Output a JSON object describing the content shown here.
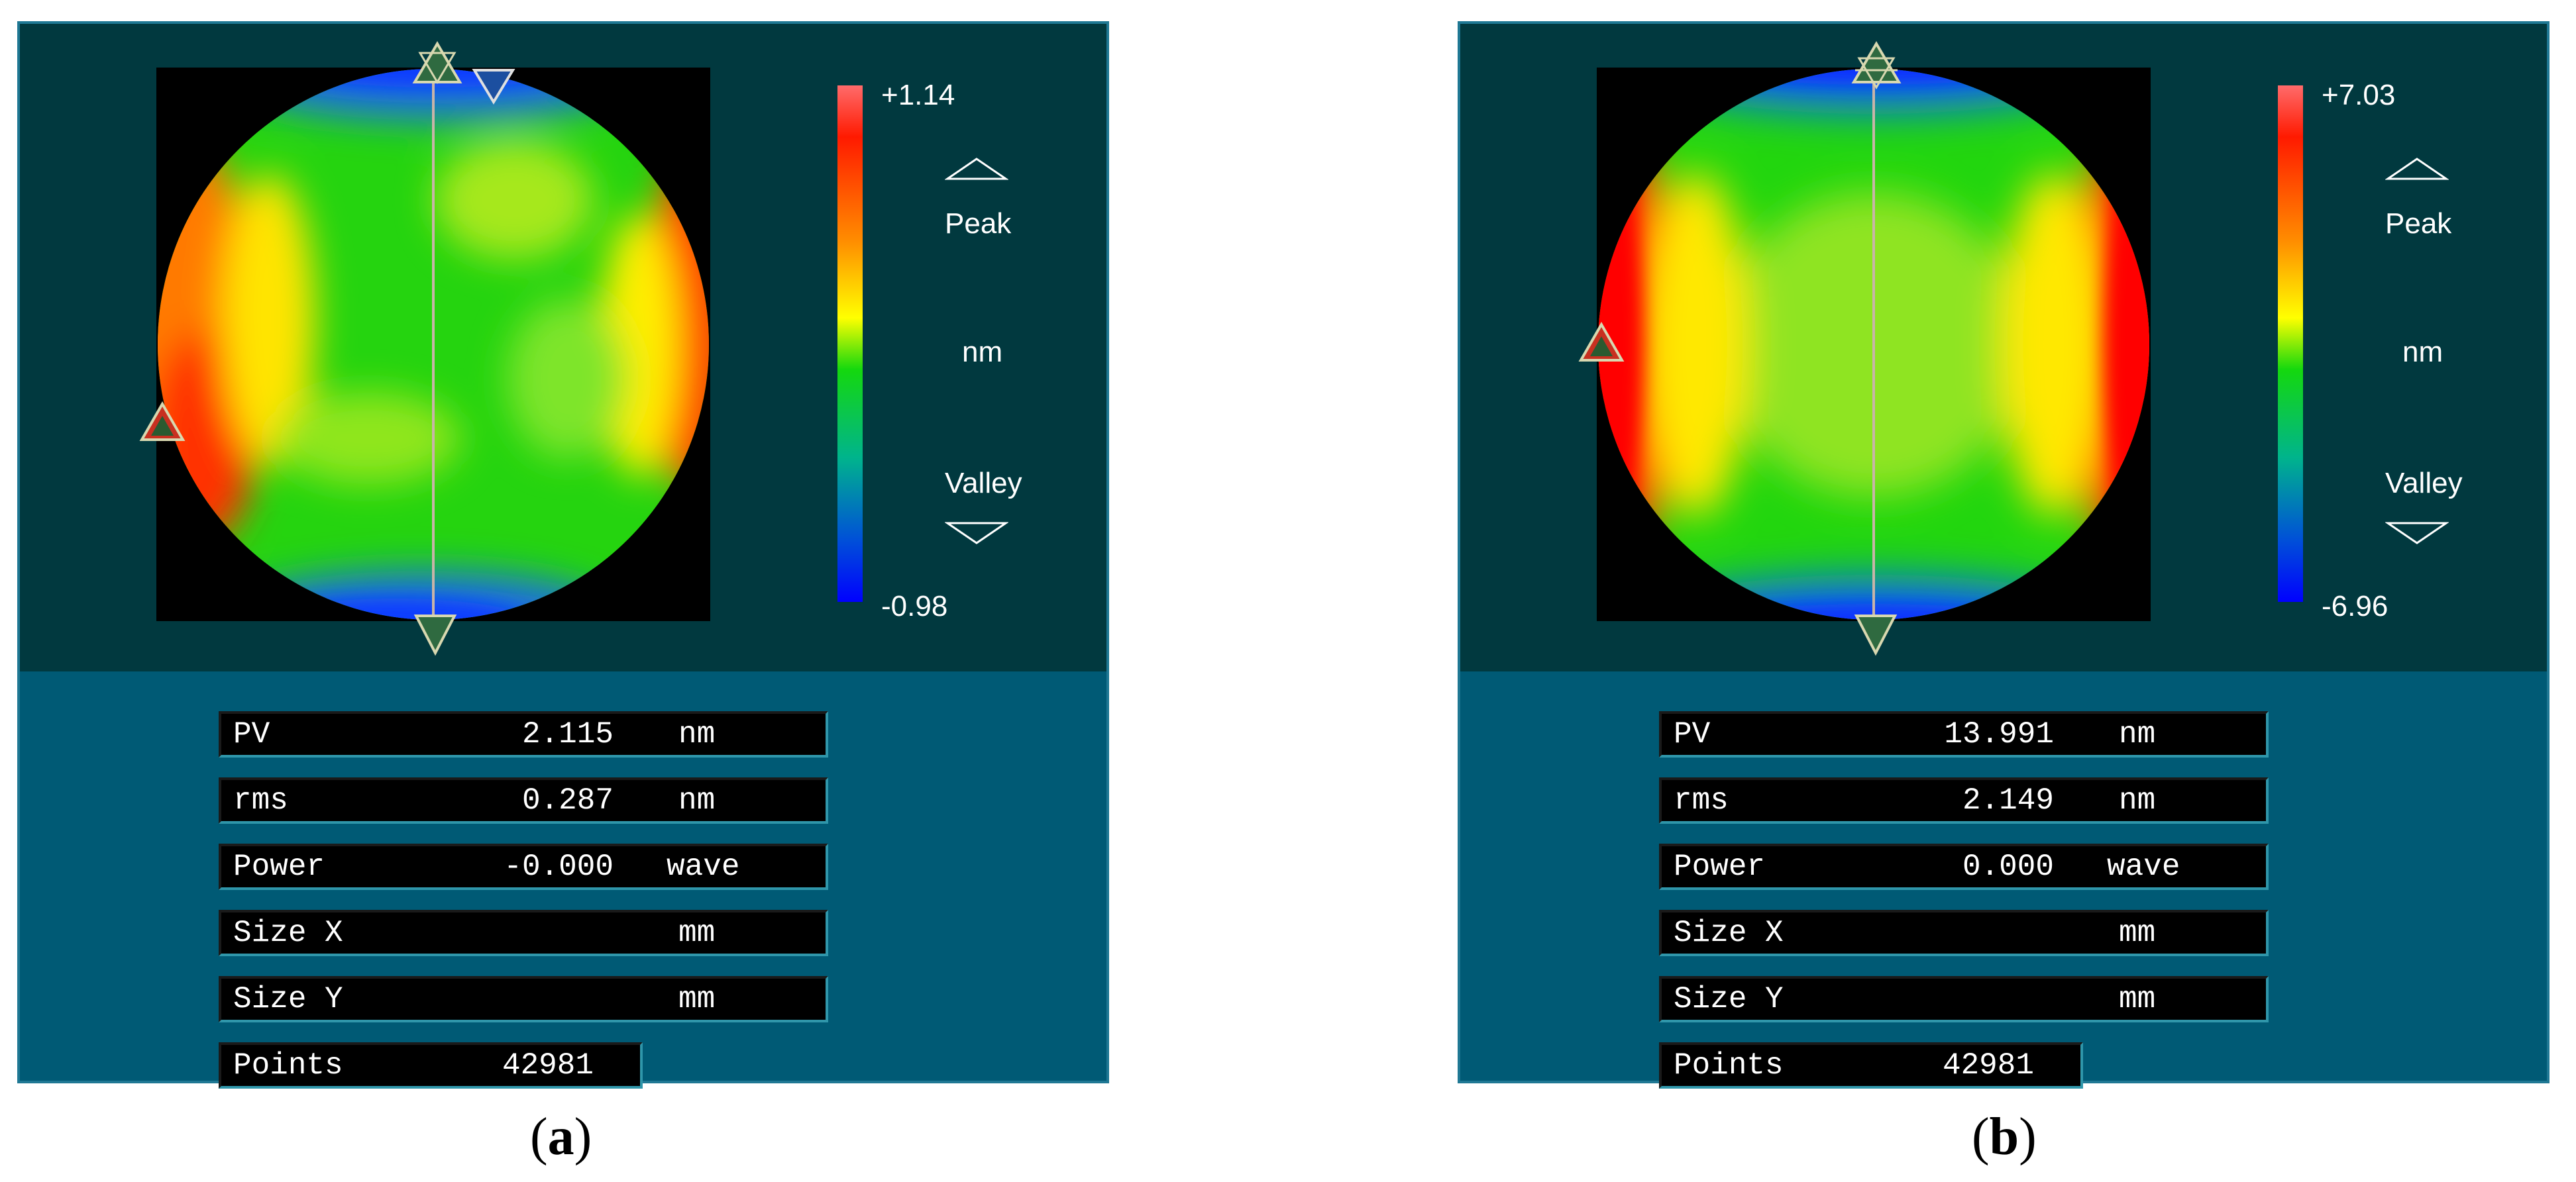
{
  "panels": [
    {
      "id": "a",
      "scale": {
        "max": "+1.14",
        "min": "-0.98",
        "unit": "nm",
        "peak_label": "Peak",
        "valley_label": "Valley"
      },
      "stats": [
        {
          "label": "PV",
          "value": "2.115",
          "unit": "nm"
        },
        {
          "label": "rms",
          "value": "0.287",
          "unit": "nm"
        },
        {
          "label": "Power",
          "value": "-0.000",
          "unit": "wave"
        },
        {
          "label": "Size X",
          "value": "",
          "unit": "mm"
        },
        {
          "label": "Size Y",
          "value": "",
          "unit": "mm"
        },
        {
          "label": "Points",
          "value": "42981",
          "unit": ""
        }
      ],
      "caption_letter": "a"
    },
    {
      "id": "b",
      "scale": {
        "max": "+7.03",
        "min": "-6.96",
        "unit": "nm",
        "peak_label": "Peak",
        "valley_label": "Valley"
      },
      "stats": [
        {
          "label": "PV",
          "value": "13.991",
          "unit": "nm"
        },
        {
          "label": "rms",
          "value": "2.149",
          "unit": "nm"
        },
        {
          "label": "Power",
          "value": "0.000",
          "unit": "wave"
        },
        {
          "label": "Size X",
          "value": "",
          "unit": "mm"
        },
        {
          "label": "Size Y",
          "value": "",
          "unit": "mm"
        },
        {
          "label": "Points",
          "value": "42981",
          "unit": ""
        }
      ],
      "caption_letter": "b"
    }
  ],
  "colors": {
    "panel_upper": "#01393f",
    "panel_lower": "#005a75",
    "colormap": [
      "#ff6b6b",
      "#ff1a00",
      "#ff8c00",
      "#ffff00",
      "#14d80e",
      "#00b48c",
      "#0050d8",
      "#0000ff"
    ]
  }
}
